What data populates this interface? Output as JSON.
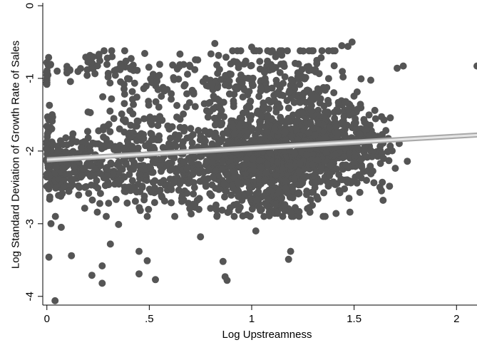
{
  "chart_data": {
    "type": "scatter",
    "title": "",
    "xlabel": "Log Upstreamness",
    "ylabel": "Log Standard Deviation of Growth Rate of Sales",
    "xlim": [
      -0.02,
      2.1
    ],
    "ylim": [
      -4.12,
      0.02
    ],
    "xticks": [
      0,
      0.5,
      1,
      1.5,
      2
    ],
    "xtick_labels": [
      "0",
      ".5",
      "1",
      "1.5",
      "2"
    ],
    "yticks": [
      0,
      -1,
      -2,
      -3,
      -4
    ],
    "ytick_labels": [
      "0",
      "-1",
      "-2",
      "-3",
      "-4"
    ],
    "grid": false,
    "legend": "none",
    "colors": {
      "points": "#555555",
      "fit_line": "#e6e6e6",
      "fit_ci_band": "#a9a9a9"
    },
    "fit_line": {
      "x": [
        0,
        2.1
      ],
      "y": [
        -2.12,
        -1.78
      ],
      "ci_halfwidth": 0.035
    },
    "outliers": [
      {
        "x": 0.04,
        "y": -4.06
      },
      {
        "x": 0.27,
        "y": -3.82
      },
      {
        "x": 0.22,
        "y": -3.71
      },
      {
        "x": 0.53,
        "y": -3.77
      },
      {
        "x": 0.45,
        "y": -3.69
      },
      {
        "x": 0.88,
        "y": -3.78
      },
      {
        "x": 0.87,
        "y": -3.73
      },
      {
        "x": 0.27,
        "y": -3.58
      },
      {
        "x": 0.12,
        "y": -3.44
      },
      {
        "x": 0.01,
        "y": -3.46
      },
      {
        "x": 0.45,
        "y": -3.38
      },
      {
        "x": 0.49,
        "y": -3.51
      },
      {
        "x": 0.31,
        "y": -3.28
      },
      {
        "x": 0.86,
        "y": -3.52
      },
      {
        "x": 1.18,
        "y": -3.49
      },
      {
        "x": 0.02,
        "y": -3.0
      },
      {
        "x": 0.07,
        "y": -3.05
      },
      {
        "x": 0.35,
        "y": -3.01
      },
      {
        "x": 0.75,
        "y": -3.18
      },
      {
        "x": 1.02,
        "y": -3.1
      },
      {
        "x": 1.19,
        "y": -3.38
      },
      {
        "x": 1.76,
        "y": -2.14
      },
      {
        "x": 2.1,
        "y": -0.83
      },
      {
        "x": 1.74,
        "y": -0.83
      },
      {
        "x": 1.71,
        "y": -0.86
      },
      {
        "x": 1.49,
        "y": -0.5
      },
      {
        "x": 1.44,
        "y": -0.55
      },
      {
        "x": 1.47,
        "y": -0.56
      },
      {
        "x": 0.82,
        "y": -0.52
      },
      {
        "x": 1.0,
        "y": -0.57
      },
      {
        "x": 0.38,
        "y": -0.62
      }
    ],
    "clusters": [
      {
        "cx": 0.01,
        "cy": -2.05,
        "sx": 0.012,
        "sy": 0.36,
        "n": 45
      },
      {
        "cx": 0.01,
        "cy": -1.05,
        "sx": 0.012,
        "sy": 0.2,
        "n": 10
      },
      {
        "cx": 0.05,
        "cy": -2.22,
        "sx": 0.025,
        "sy": 0.23,
        "n": 50
      },
      {
        "cx": 0.15,
        "cy": -2.2,
        "sx": 0.07,
        "sy": 0.22,
        "n": 90
      },
      {
        "cx": 0.2,
        "cy": -0.85,
        "sx": 0.13,
        "sy": 0.1,
        "n": 45
      },
      {
        "cx": 0.38,
        "cy": -2.25,
        "sx": 0.12,
        "sy": 0.3,
        "n": 170
      },
      {
        "cx": 0.5,
        "cy": -1.7,
        "sx": 0.18,
        "sy": 0.3,
        "n": 110
      },
      {
        "cx": 0.55,
        "cy": -0.95,
        "sx": 0.14,
        "sy": 0.14,
        "n": 45
      },
      {
        "cx": 0.68,
        "cy": -2.25,
        "sx": 0.11,
        "sy": 0.28,
        "n": 150
      },
      {
        "cx": 0.9,
        "cy": -2.1,
        "sx": 0.1,
        "sy": 0.32,
        "n": 220
      },
      {
        "cx": 0.85,
        "cy": -1.1,
        "sx": 0.1,
        "sy": 0.25,
        "n": 60
      },
      {
        "cx": 1.1,
        "cy": -2.1,
        "sx": 0.12,
        "sy": 0.3,
        "n": 520
      },
      {
        "cx": 1.15,
        "cy": -1.0,
        "sx": 0.15,
        "sy": 0.3,
        "n": 150
      },
      {
        "cx": 1.3,
        "cy": -1.6,
        "sx": 0.12,
        "sy": 0.25,
        "n": 180
      },
      {
        "cx": 1.35,
        "cy": -2.1,
        "sx": 0.1,
        "sy": 0.28,
        "n": 270
      },
      {
        "cx": 1.55,
        "cy": -1.9,
        "sx": 0.08,
        "sy": 0.3,
        "n": 120
      },
      {
        "cx": 1.1,
        "cy": -2.75,
        "sx": 0.12,
        "sy": 0.13,
        "n": 55
      }
    ]
  }
}
